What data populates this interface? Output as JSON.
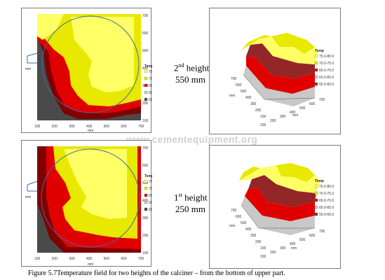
{
  "figure": {
    "caption": "Figure 5.7Temperature field for two heights of the calciner – from the bottom of upper part.",
    "watermark": "www.cementequipment.org"
  },
  "heights": [
    {
      "ordinal": "2",
      "suffix": "nd",
      "word": "height",
      "value": "550 mm"
    },
    {
      "ordinal": "1",
      "suffix": "st",
      "word": "height",
      "value": "250 mm"
    }
  ],
  "map_axis": {
    "x_ticks": [
      "100",
      "200",
      "300",
      "400",
      "500",
      "600",
      "700"
    ],
    "y_ticks": [
      "700",
      "600",
      "500",
      "400",
      "300",
      "200",
      "100"
    ],
    "x_label": "mm",
    "y_label": "mm",
    "inlet_label": "mm"
  },
  "surface_axis": {
    "depth_ticks": [
      "700",
      "600",
      "500",
      "400",
      "300",
      "200",
      "100"
    ],
    "width_ticks": [
      "100",
      "200",
      "300",
      "400",
      "500",
      "600",
      "700"
    ],
    "depth_label": "mm",
    "width_label": "mm"
  },
  "legend": {
    "title": "Temp",
    "items": [
      {
        "label": "75.0-80.0",
        "color": "#ffff66"
      },
      {
        "label": "70.0-75.0",
        "color": "#e8e800"
      },
      {
        "label": "65.0-70.0",
        "color": "#e00000"
      },
      {
        "label": "60.0-65.0",
        "color": "#c8c8c8"
      },
      {
        "label": "55.0-60.0",
        "color": "#4a4a4a"
      }
    ]
  },
  "colors": {
    "bright_yellow": "#ffff66",
    "yellow": "#e8e800",
    "dark_yellow": "#b8b800",
    "red": "#e00000",
    "dark_red": "#800000",
    "grey": "#c8c8c8",
    "dark_grey": "#4a4a4a",
    "circle": "#3b6ea5"
  }
}
